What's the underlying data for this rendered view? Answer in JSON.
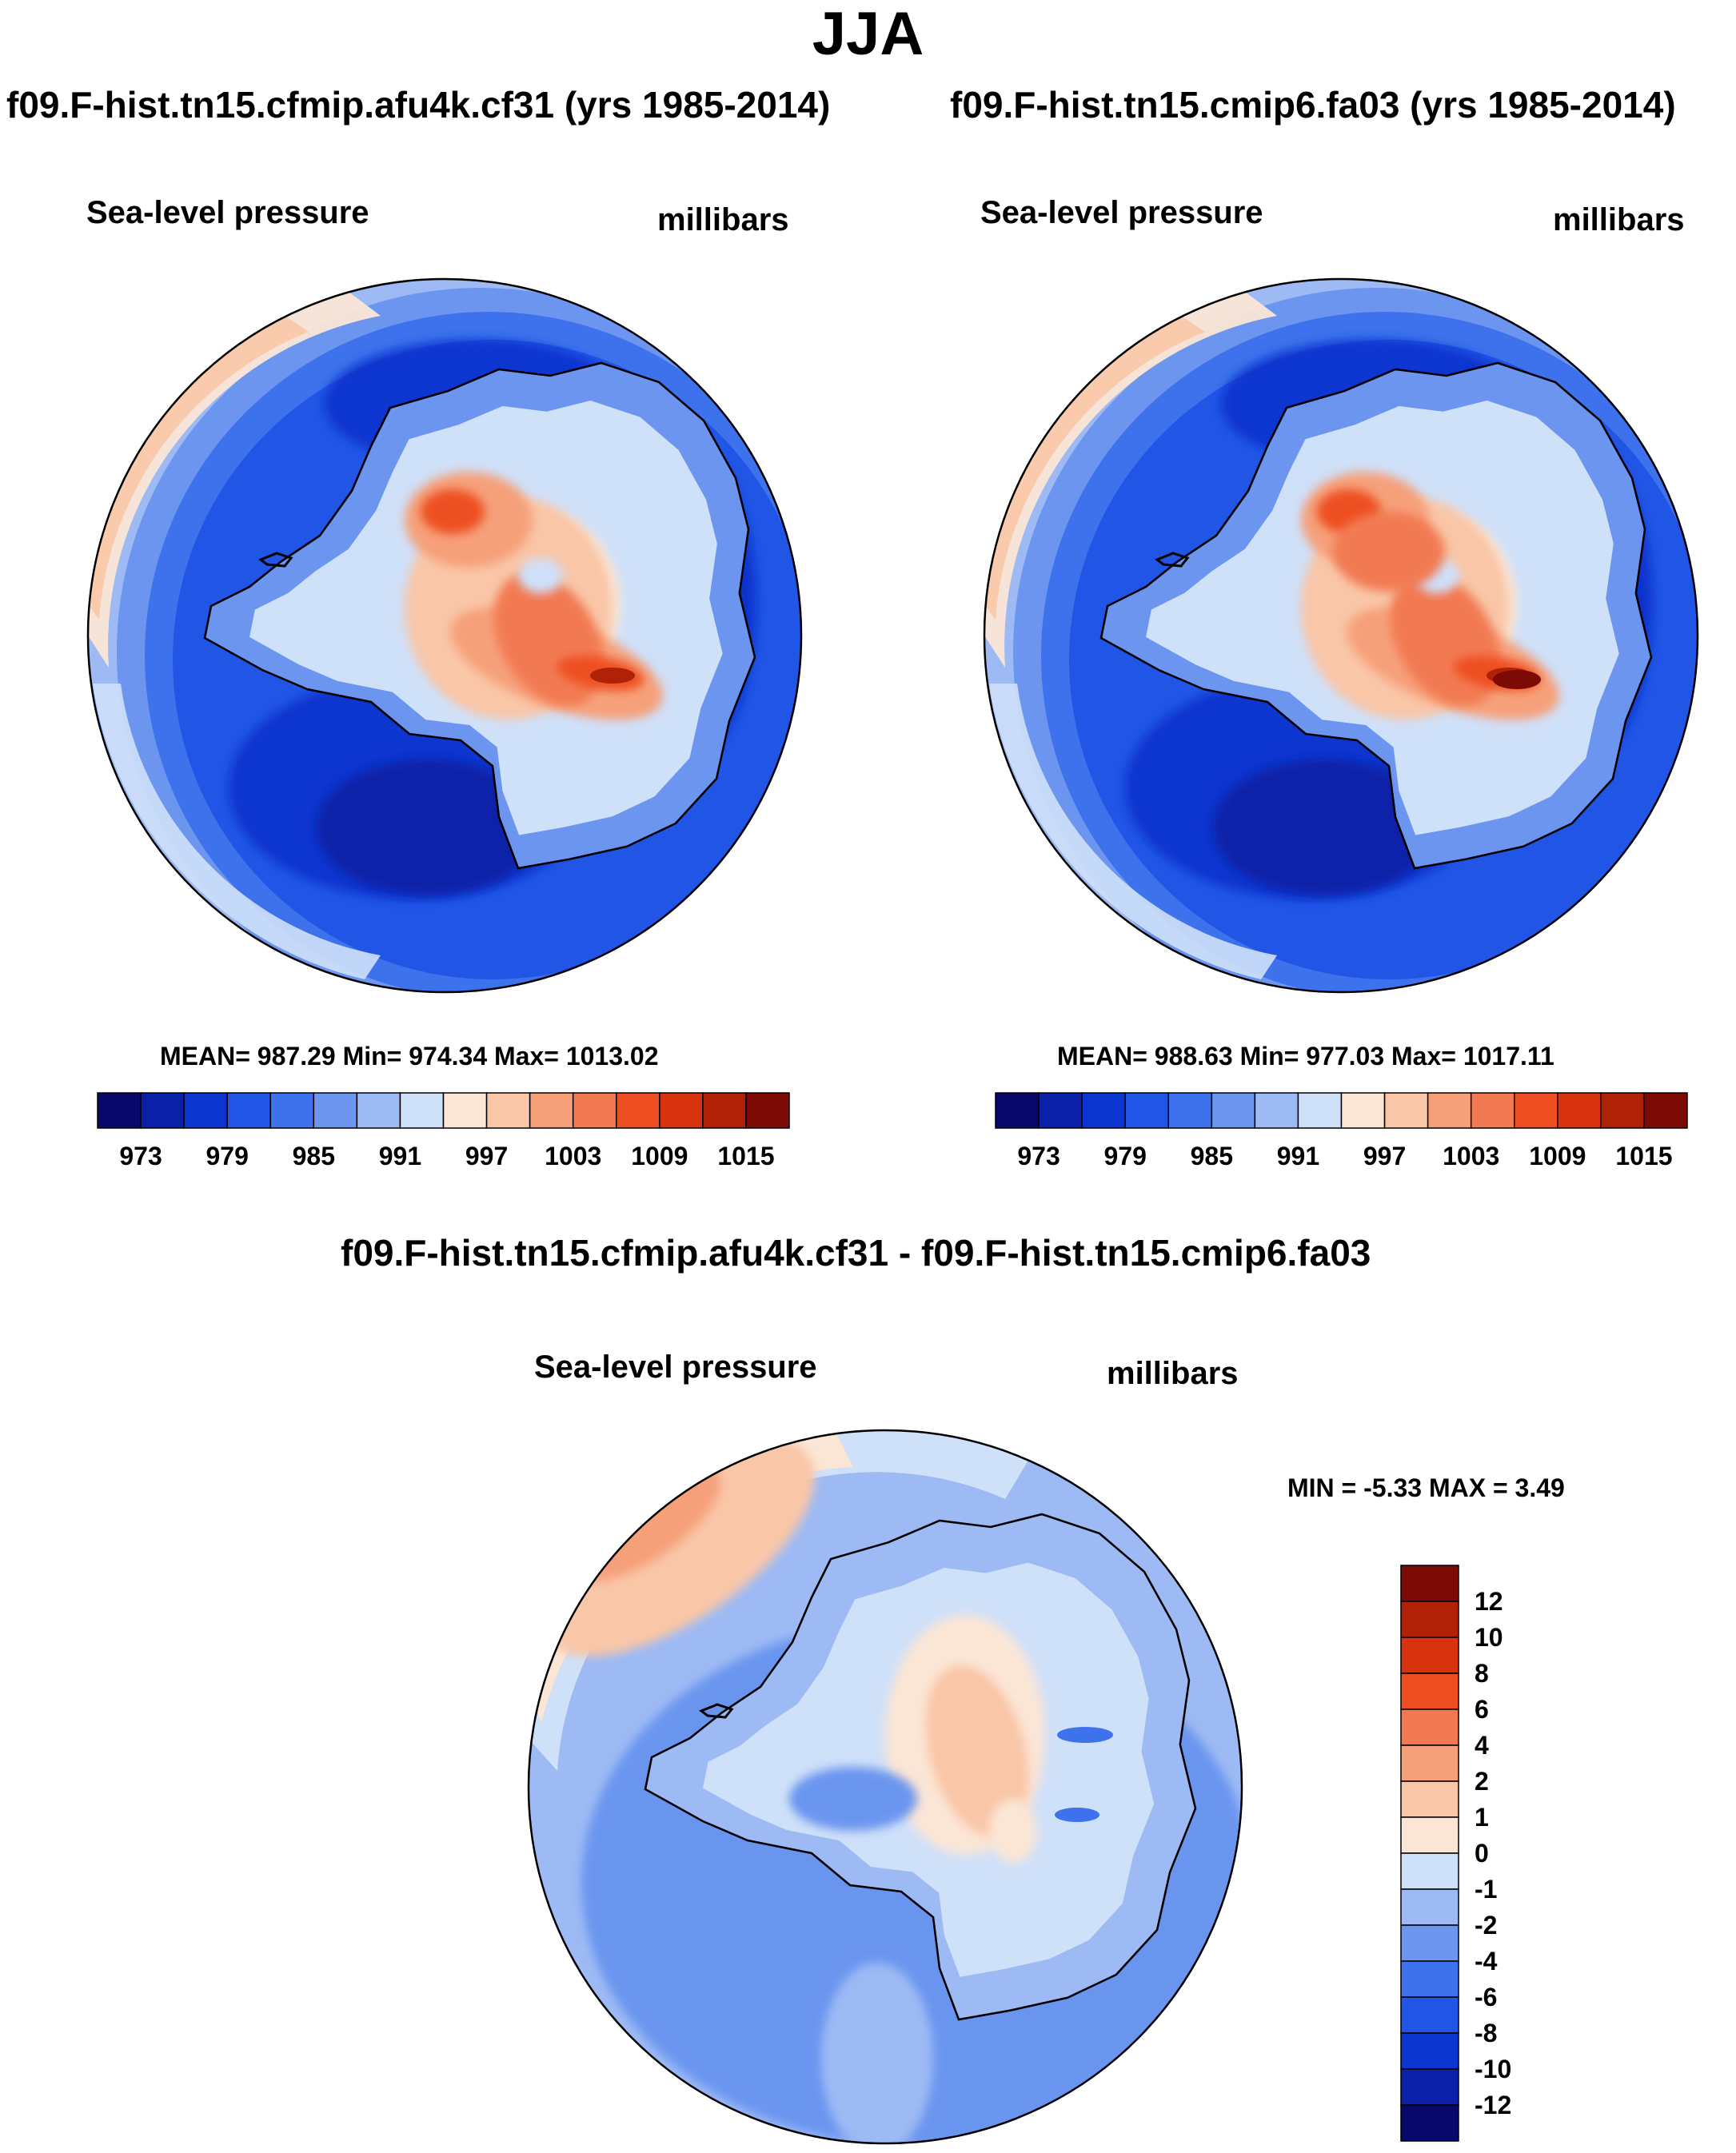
{
  "title": "JJA",
  "panels": [
    {
      "case": "f09.F-hist.tn15.cfmip.afu4k.cf31 (yrs 1985-2014)",
      "variable": "Sea-level pressure",
      "units": "millibars",
      "stats": "MEAN= 987.29  Min= 974.34  Max= 1013.02"
    },
    {
      "case": "f09.F-hist.tn15.cmip6.fa03 (yrs 1985-2014)",
      "variable": "Sea-level pressure",
      "units": "millibars",
      "stats": "MEAN= 988.63  Min= 977.03  Max= 1017.11"
    },
    {
      "case": "f09.F-hist.tn15.cfmip.afu4k.cf31 - f09.F-hist.tn15.cmip6.fa03",
      "variable": "Sea-level pressure",
      "units": "millibars",
      "stats": "MIN =  -5.33 MAX =   3.49"
    }
  ],
  "chart_data": [
    {
      "type": "heatmap",
      "title": "Sea-level pressure",
      "projection": "south polar stereographic",
      "units": "millibars",
      "mean": 987.29,
      "min": 974.34,
      "max": 1013.02,
      "colorbar_labels": [
        "973",
        "979",
        "985",
        "991",
        "997",
        "1003",
        "1009",
        "1015"
      ],
      "levels": [
        970,
        973,
        976,
        979,
        982,
        985,
        988,
        991,
        994,
        997,
        1000,
        1003,
        1006,
        1009,
        1012,
        1015,
        1018
      ]
    },
    {
      "type": "heatmap",
      "title": "Sea-level pressure",
      "projection": "south polar stereographic",
      "units": "millibars",
      "mean": 988.63,
      "min": 977.03,
      "max": 1017.11,
      "colorbar_labels": [
        "973",
        "979",
        "985",
        "991",
        "997",
        "1003",
        "1009",
        "1015"
      ],
      "levels": [
        970,
        973,
        976,
        979,
        982,
        985,
        988,
        991,
        994,
        997,
        1000,
        1003,
        1006,
        1009,
        1012,
        1015,
        1018
      ]
    },
    {
      "type": "heatmap",
      "title": "Sea-level pressure",
      "projection": "south polar stereographic",
      "units": "millibars",
      "min": -5.33,
      "max": 3.49,
      "colorbar_labels": [
        "12",
        "10",
        "8",
        "6",
        "4",
        "2",
        "1",
        "0",
        "-1",
        "-2",
        "-4",
        "-6",
        "-8",
        "-10",
        "-12"
      ]
    }
  ],
  "colors": {
    "abs_scale": [
      "#08086b",
      "#0a20a8",
      "#0c35cf",
      "#2155e6",
      "#3d72ec",
      "#6b95ef",
      "#9dbaf4",
      "#cfe0f9",
      "#fbe6d6",
      "#f9c6a7",
      "#f6a07a",
      "#f27a52",
      "#ee4f22",
      "#d8330f",
      "#b02208",
      "#7e0a05"
    ],
    "diff_scale": [
      "#7e0a05",
      "#b02208",
      "#d8330f",
      "#ee4f22",
      "#f27a52",
      "#f6a07a",
      "#f9c6a7",
      "#fbe6d6",
      "#cfe0f9",
      "#9dbaf4",
      "#6b95ef",
      "#3d72ec",
      "#2155e6",
      "#0c35cf",
      "#0a20a8",
      "#08086b"
    ]
  }
}
